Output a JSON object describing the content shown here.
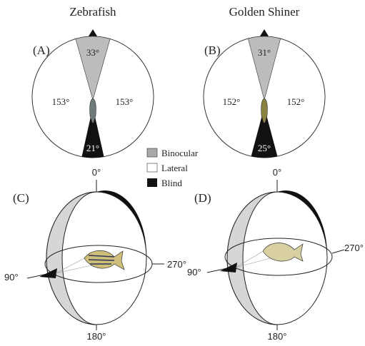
{
  "panels": [
    {
      "title": "Zebrafish",
      "label": "(A)",
      "binocular": "33°",
      "lateral_left": "153°",
      "lateral_right": "153°",
      "blind": "21°"
    },
    {
      "title": "Golden Shiner",
      "label": "(B)",
      "binocular": "31°",
      "lateral_left": "152°",
      "lateral_right": "152°",
      "blind": "25°"
    }
  ],
  "legend": [
    "Binocular",
    "Lateral",
    "Blind"
  ],
  "spheres": [
    {
      "label": "(C)",
      "top": "0°",
      "right": "270°",
      "left": "90°",
      "bottom": "180°"
    },
    {
      "label": "(D)",
      "top": "0°",
      "right": "270°",
      "left": "90°",
      "bottom": "180°"
    }
  ]
}
